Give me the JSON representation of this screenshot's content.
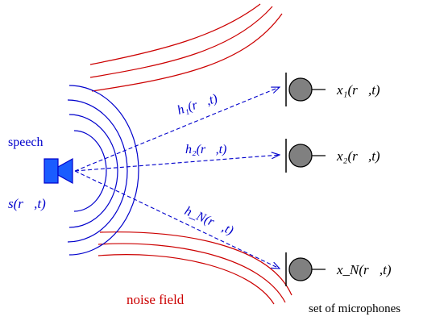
{
  "labels": {
    "speech": "speech",
    "source_signal": "s(r⃗,t)",
    "noise_field": "noise field",
    "microphones": "set of microphones"
  },
  "transfer_functions": [
    {
      "label": "h₁(r⃗,t)"
    },
    {
      "label": "h₂(r⃗,t)"
    },
    {
      "label": "h_N(r⃗,t)"
    }
  ],
  "mic_outputs": [
    {
      "label": "x₁(r⃗,t)"
    },
    {
      "label": "x₂(r⃗,t)"
    },
    {
      "label": "x_N(r⃗,t)"
    }
  ],
  "colors": {
    "speech_blue": "#0000cc",
    "speaker_fill": "#1a5cff",
    "noise_red": "#cc0000",
    "mic_gray": "#808080",
    "black": "#000000"
  }
}
